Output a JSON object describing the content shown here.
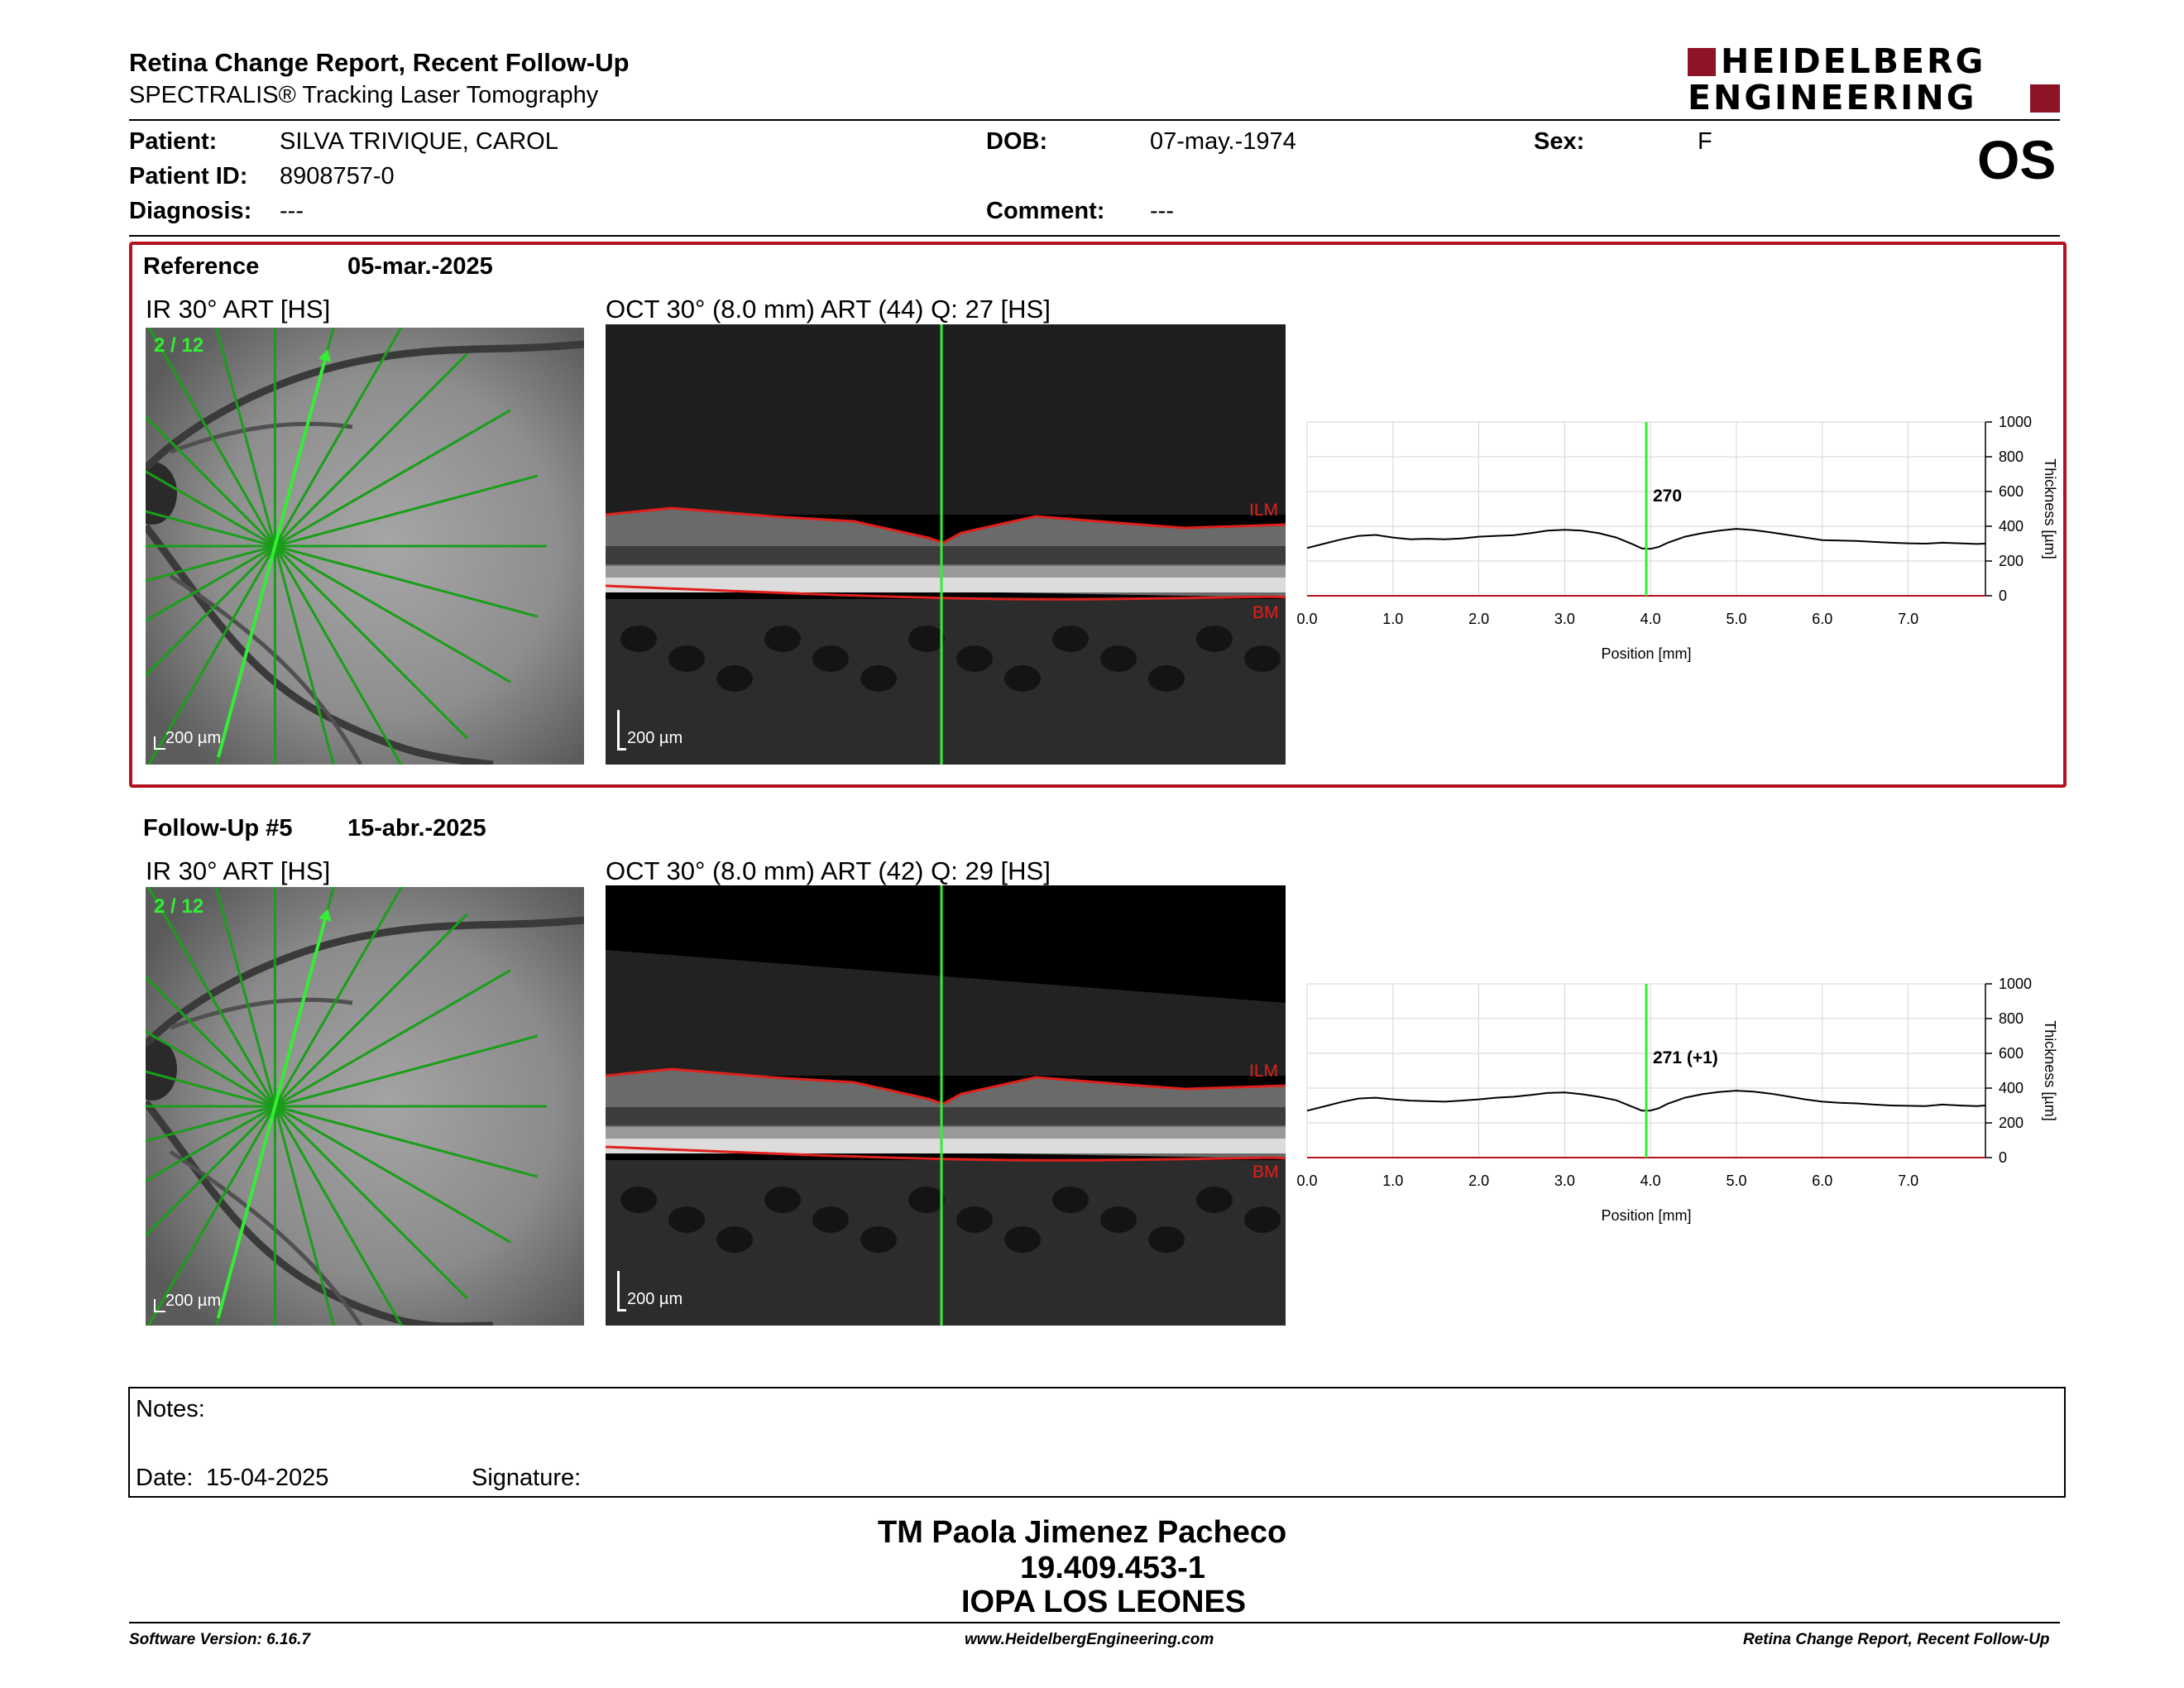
{
  "header": {
    "title": "Retina Change Report, Recent Follow-Up",
    "subtitle": "SPECTRALIS® Tracking Laser Tomography",
    "brand_line1": "HEIDELBERG",
    "brand_line2": "ENGINEERING",
    "eye": "OS"
  },
  "patient": {
    "name_label": "Patient:",
    "name": "SILVA TRIVIQUE, CAROL",
    "id_label": "Patient ID:",
    "id": "8908757-0",
    "diagnosis_label": "Diagnosis:",
    "diagnosis": "---",
    "dob_label": "DOB:",
    "dob": "07-may.-1974",
    "comment_label": "Comment:",
    "comment": "---",
    "sex_label": "Sex:",
    "sex": "F"
  },
  "reference": {
    "label": "Reference",
    "date": "05-mar.-2025",
    "ir_title": "IR 30° ART [HS]",
    "scan_index": "2 / 12",
    "ir_scale": "200 µm",
    "oct_title": "OCT 30° (8.0 mm) ART (44) Q: 27 [HS]",
    "oct_scale": "200 µm",
    "ilm": "ILM",
    "bm": "BM"
  },
  "followup": {
    "label": "Follow-Up #5",
    "date": "15-abr.-2025",
    "ir_title": "IR 30° ART [HS]",
    "scan_index": "2 / 12",
    "ir_scale": "200 µm",
    "oct_title": "OCT 30° (8.0 mm) ART (42) Q: 29 [HS]",
    "oct_scale": "200 µm",
    "ilm": "ILM",
    "bm": "BM"
  },
  "chart_data": [
    {
      "type": "line",
      "name": "reference-thickness",
      "xlabel": "Position [mm]",
      "ylabel": "Thickness [µm]",
      "xlim": [
        0,
        7.9
      ],
      "ylim": [
        0,
        1000
      ],
      "xticks": [
        "0.0",
        "1.0",
        "2.0",
        "3.0",
        "4.0",
        "5.0",
        "6.0",
        "7.0"
      ],
      "yticks": [
        "0",
        "200",
        "400",
        "600",
        "800",
        "1000"
      ],
      "grid": true,
      "cursor": {
        "x": 3.95,
        "label": "270"
      },
      "x": [
        0.0,
        0.2,
        0.4,
        0.6,
        0.8,
        1.0,
        1.2,
        1.4,
        1.6,
        1.8,
        2.0,
        2.2,
        2.4,
        2.6,
        2.8,
        3.0,
        3.2,
        3.4,
        3.6,
        3.8,
        3.9,
        4.0,
        4.1,
        4.2,
        4.4,
        4.6,
        4.8,
        5.0,
        5.2,
        5.4,
        5.6,
        5.8,
        6.0,
        6.2,
        6.4,
        6.6,
        6.8,
        7.0,
        7.2,
        7.4,
        7.6,
        7.8,
        7.9
      ],
      "y": [
        275,
        300,
        325,
        345,
        350,
        335,
        325,
        328,
        325,
        330,
        340,
        345,
        348,
        360,
        375,
        380,
        375,
        360,
        335,
        295,
        272,
        270,
        282,
        305,
        340,
        360,
        375,
        385,
        378,
        365,
        350,
        335,
        320,
        318,
        315,
        310,
        305,
        302,
        300,
        305,
        302,
        298,
        300
      ]
    },
    {
      "type": "line",
      "name": "followup-thickness",
      "xlabel": "Position [mm]",
      "ylabel": "Thickness [µm]",
      "xlim": [
        0,
        7.9
      ],
      "ylim": [
        0,
        1000
      ],
      "xticks": [
        "0.0",
        "1.0",
        "2.0",
        "3.0",
        "4.0",
        "5.0",
        "6.0",
        "7.0"
      ],
      "yticks": [
        "0",
        "200",
        "400",
        "600",
        "800",
        "1000"
      ],
      "grid": true,
      "cursor": {
        "x": 3.95,
        "label": "271 (+1)"
      },
      "x": [
        0.0,
        0.2,
        0.4,
        0.6,
        0.8,
        1.0,
        1.2,
        1.4,
        1.6,
        1.8,
        2.0,
        2.2,
        2.4,
        2.6,
        2.8,
        3.0,
        3.2,
        3.4,
        3.6,
        3.8,
        3.9,
        4.0,
        4.1,
        4.2,
        4.4,
        4.6,
        4.8,
        5.0,
        5.2,
        5.4,
        5.6,
        5.8,
        6.0,
        6.2,
        6.4,
        6.6,
        6.8,
        7.0,
        7.2,
        7.4,
        7.6,
        7.8,
        7.9
      ],
      "y": [
        270,
        295,
        320,
        340,
        345,
        335,
        328,
        325,
        322,
        328,
        335,
        345,
        350,
        360,
        372,
        375,
        365,
        350,
        330,
        290,
        270,
        271,
        285,
        310,
        345,
        365,
        378,
        385,
        380,
        368,
        352,
        335,
        322,
        315,
        312,
        305,
        300,
        298,
        296,
        305,
        300,
        296,
        300
      ]
    }
  ],
  "notes": {
    "label": "Notes:",
    "date_label": "Date:",
    "date": "15-04-2025",
    "signature_label": "Signature:"
  },
  "stamp": {
    "line1": "TM Paola Jimenez Pacheco",
    "line2": "19.409.453-1",
    "line3": "IOPA LOS LEONES"
  },
  "footer": {
    "software": "Software Version: 6.16.7",
    "website": "www.HeidelbergEngineering.com",
    "report": "Retina Change Report, Recent Follow-Up"
  },
  "colors": {
    "accent_red": "#b3121f",
    "scan_green": "#1db51d",
    "ilm_red": "#e0201c",
    "brand_red": "#8c1426"
  }
}
